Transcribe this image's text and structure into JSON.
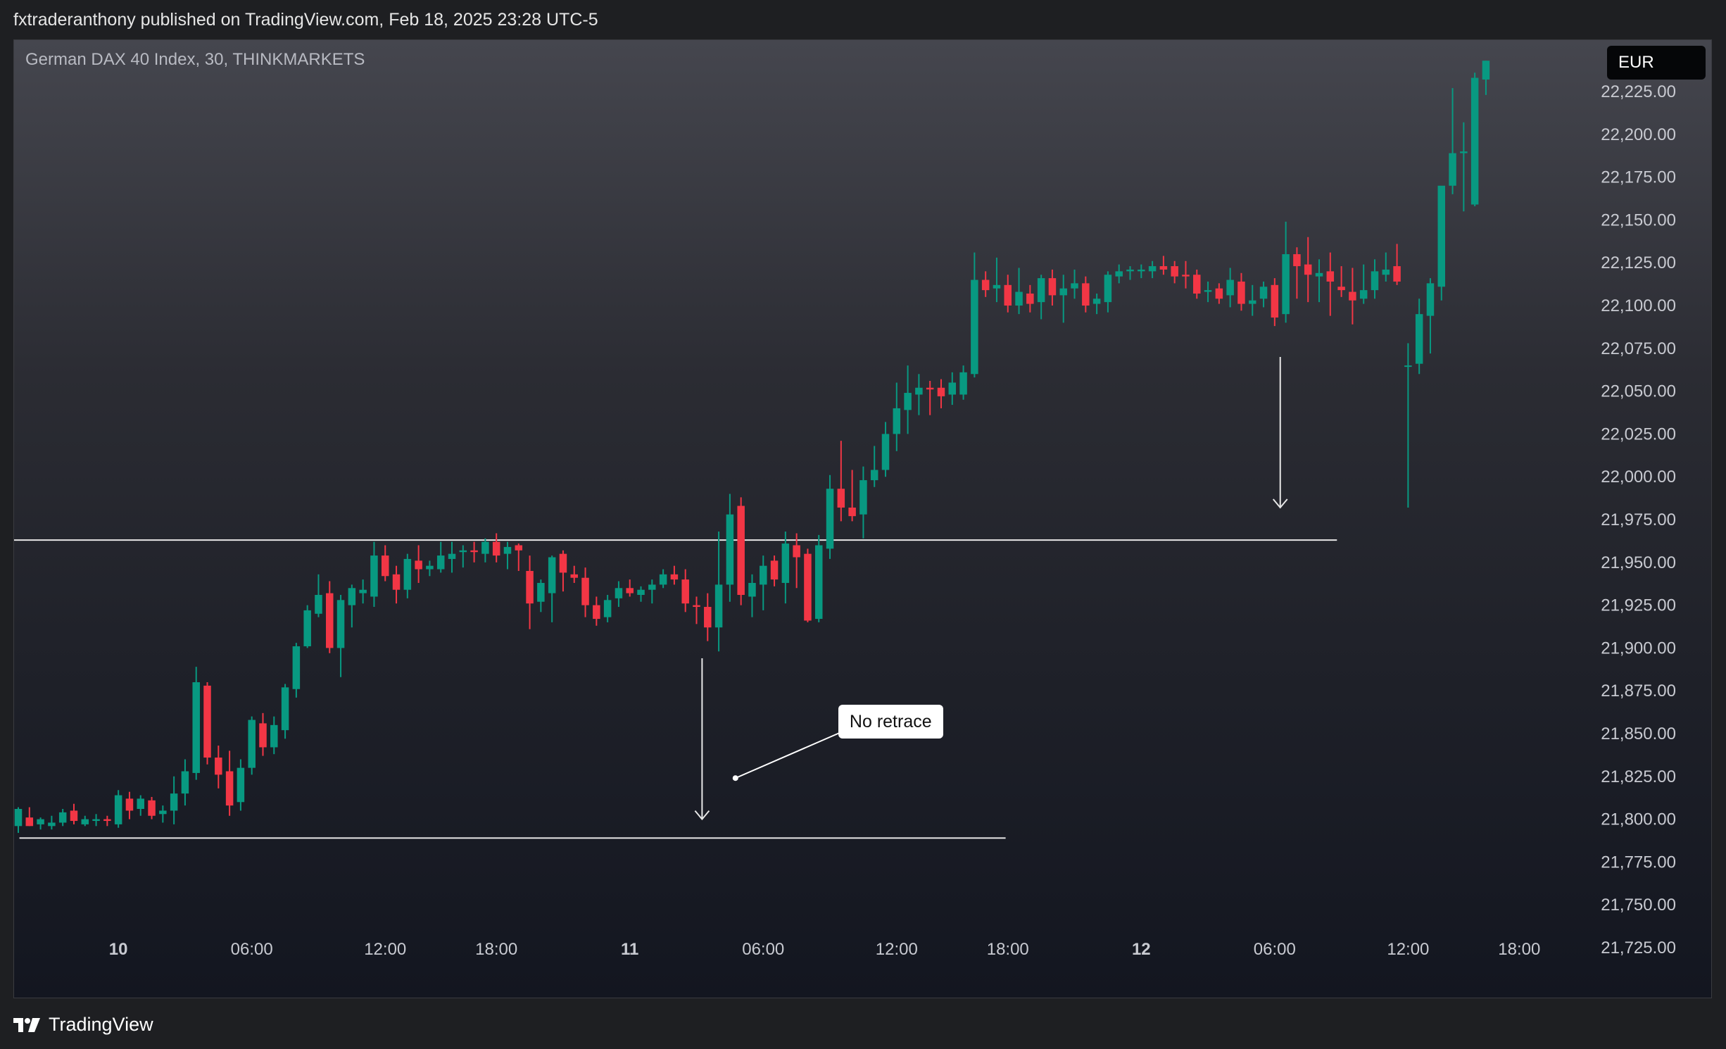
{
  "header": {
    "published_text": "fxtraderanthony published on TradingView.com, Feb 18, 2025 23:28 UTC-5"
  },
  "chart": {
    "symbol_title": "German DAX 40 Index, 30, THINKMARKETS",
    "currency": "EUR",
    "annotation": "No retrace"
  },
  "footer": {
    "brand": "TradingView"
  },
  "colors": {
    "up": "#089981",
    "down": "#f23645",
    "line": "#e8e8e8"
  },
  "chart_data": {
    "type": "candlestick",
    "instrument": "German DAX 40 Index",
    "interval": "30",
    "broker": "THINKMARKETS",
    "ylim": [
      21712,
      22243
    ],
    "y_ticks": [
      21725,
      21750,
      21775,
      21800,
      21825,
      21850,
      21875,
      21900,
      21925,
      21950,
      21975,
      22000,
      22025,
      22050,
      22075,
      22100,
      22125,
      22150,
      22175,
      22200,
      22225
    ],
    "y_tick_labels": [
      "21,725.00",
      "21,750.00",
      "21,775.00",
      "21,800.00",
      "21,825.00",
      "21,850.00",
      "21,875.00",
      "21,900.00",
      "21,925.00",
      "21,950.00",
      "21,975.00",
      "22,000.00",
      "22,025.00",
      "22,050.00",
      "22,075.00",
      "22,100.00",
      "22,125.00",
      "22,150.00",
      "22,175.00",
      "22,200.00",
      "22,225.00"
    ],
    "x_ticks": [
      {
        "label": "10",
        "bar": 9,
        "bold": true
      },
      {
        "label": "06:00",
        "bar": 21
      },
      {
        "label": "12:00",
        "bar": 33
      },
      {
        "label": "18:00",
        "bar": 43
      },
      {
        "label": "11",
        "bar": 55,
        "bold": true
      },
      {
        "label": "06:00",
        "bar": 67
      },
      {
        "label": "12:00",
        "bar": 79
      },
      {
        "label": "18:00",
        "bar": 89
      },
      {
        "label": "12",
        "bar": 101,
        "bold": true
      },
      {
        "label": "06:00",
        "bar": 113
      },
      {
        "label": "12:00",
        "bar": 125
      },
      {
        "label": "18:00",
        "bar": 135
      }
    ],
    "horizontal_lines": [
      {
        "price": 21963,
        "from_bar": -1.2,
        "to_bar": 118.6
      },
      {
        "price": 21789,
        "from_bar": 0.1,
        "to_bar": 88.8
      }
    ],
    "arrows": [
      {
        "bar": 61.5,
        "from_price": 21894,
        "to_price": 21800
      },
      {
        "bar": 113.5,
        "from_price": 22070,
        "to_price": 21982
      }
    ],
    "callout": {
      "text": "No retrace",
      "point_bar": 64.5,
      "point_price": 21824,
      "box_bar": 73.5,
      "box_price": 21848
    },
    "candles": [
      [
        21796,
        21807,
        21792,
        21806
      ],
      [
        21801,
        21807,
        21796,
        21796
      ],
      [
        21797,
        21801,
        21794,
        21800
      ],
      [
        21796,
        21802,
        21794,
        21798
      ],
      [
        21798,
        21806,
        21796,
        21804
      ],
      [
        21805,
        21809,
        21797,
        21799
      ],
      [
        21797,
        21802,
        21796,
        21800
      ],
      [
        21799,
        21803,
        21796,
        21800
      ],
      [
        21800,
        21802,
        21796,
        21799
      ],
      [
        21797,
        21817,
        21795,
        21814
      ],
      [
        21812,
        21816,
        21800,
        21805
      ],
      [
        21806,
        21814,
        21802,
        21812
      ],
      [
        21811,
        21813,
        21800,
        21802
      ],
      [
        21803,
        21808,
        21798,
        21805
      ],
      [
        21805,
        21825,
        21797,
        21815
      ],
      [
        21815,
        21835,
        21808,
        21828
      ],
      [
        21827,
        21889,
        21823,
        21880
      ],
      [
        21878,
        21880,
        21832,
        21836
      ],
      [
        21836,
        21843,
        21818,
        21826
      ],
      [
        21828,
        21840,
        21802,
        21808
      ],
      [
        21810,
        21835,
        21805,
        21830
      ],
      [
        21830,
        21860,
        21826,
        21858
      ],
      [
        21856,
        21862,
        21837,
        21842
      ],
      [
        21842,
        21860,
        21838,
        21855
      ],
      [
        21852,
        21879,
        21847,
        21877
      ],
      [
        21876,
        21903,
        21871,
        21901
      ],
      [
        21901,
        21925,
        21900,
        21922
      ],
      [
        21920,
        21943,
        21918,
        21931
      ],
      [
        21932,
        21939,
        21897,
        21900
      ],
      [
        21900,
        21931,
        21883,
        21928
      ],
      [
        21925,
        21937,
        21912,
        21935
      ],
      [
        21932,
        21940,
        21926,
        21934
      ],
      [
        21930,
        21962,
        21924,
        21954
      ],
      [
        21954,
        21960,
        21939,
        21942
      ],
      [
        21943,
        21948,
        21926,
        21934
      ],
      [
        21934,
        21955,
        21929,
        21952
      ],
      [
        21951,
        21960,
        21938,
        21946
      ],
      [
        21946,
        21951,
        21942,
        21948
      ],
      [
        21946,
        21962,
        21944,
        21954
      ],
      [
        21952,
        21962,
        21944,
        21955
      ],
      [
        21956,
        21960,
        21947,
        21957
      ],
      [
        21957,
        21962,
        21950,
        21956
      ],
      [
        21955,
        21964,
        21950,
        21962
      ],
      [
        21962,
        21967,
        21950,
        21954
      ],
      [
        21955,
        21962,
        21946,
        21959
      ],
      [
        21960,
        21961,
        21945,
        21957
      ],
      [
        21945,
        21954,
        21911,
        21926
      ],
      [
        21927,
        21940,
        21921,
        21938
      ],
      [
        21932,
        21954,
        21915,
        21953
      ],
      [
        21955,
        21957,
        21933,
        21944
      ],
      [
        21943,
        21948,
        21938,
        21941
      ],
      [
        21941,
        21947,
        21918,
        21925
      ],
      [
        21925,
        21930,
        21913,
        21917
      ],
      [
        21918,
        21931,
        21915,
        21928
      ],
      [
        21929,
        21939,
        21924,
        21935
      ],
      [
        21935,
        21940,
        21930,
        21932
      ],
      [
        21931,
        21936,
        21927,
        21934
      ],
      [
        21934,
        21940,
        21926,
        21937
      ],
      [
        21937,
        21946,
        21935,
        21943
      ],
      [
        21943,
        21948,
        21937,
        21940
      ],
      [
        21940,
        21946,
        21921,
        21926
      ],
      [
        21925,
        21930,
        21914,
        21924
      ],
      [
        21924,
        21932,
        21904,
        21912
      ],
      [
        21912,
        21968,
        21898,
        21937
      ],
      [
        21937,
        21990,
        21927,
        21978
      ],
      [
        21983,
        21988,
        21925,
        21931
      ],
      [
        21930,
        21943,
        21918,
        21938
      ],
      [
        21937,
        21954,
        21922,
        21948
      ],
      [
        21951,
        21954,
        21936,
        21940
      ],
      [
        21938,
        21968,
        21926,
        21961
      ],
      [
        21960,
        21967,
        21935,
        21953
      ],
      [
        21955,
        21958,
        21915,
        21916
      ],
      [
        21917,
        21966,
        21915,
        21960
      ],
      [
        21958,
        22001,
        21952,
        21993
      ],
      [
        21993,
        22021,
        21974,
        21982
      ],
      [
        21982,
        22004,
        21974,
        21977
      ],
      [
        21978,
        22006,
        21964,
        21998
      ],
      [
        21998,
        22018,
        21994,
        22004
      ],
      [
        22004,
        22032,
        22000,
        22025
      ],
      [
        22025,
        22055,
        22015,
        22040
      ],
      [
        22039,
        22065,
        22025,
        22049
      ],
      [
        22048,
        22060,
        22036,
        22052
      ],
      [
        22052,
        22056,
        22036,
        22051
      ],
      [
        22052,
        22057,
        22040,
        22047
      ],
      [
        22048,
        22061,
        22042,
        22055
      ],
      [
        22048,
        22065,
        22045,
        22061
      ],
      [
        22060,
        22131,
        22058,
        22115
      ],
      [
        22115,
        22120,
        22105,
        22109
      ],
      [
        22110,
        22128,
        22102,
        22112
      ],
      [
        22112,
        22118,
        22096,
        22100
      ],
      [
        22100,
        22122,
        22095,
        22108
      ],
      [
        22107,
        22112,
        22096,
        22101
      ],
      [
        22102,
        22118,
        22092,
        22116
      ],
      [
        22116,
        22121,
        22100,
        22106
      ],
      [
        22106,
        22118,
        22090,
        22110
      ],
      [
        22110,
        22121,
        22104,
        22113
      ],
      [
        22113,
        22117,
        22096,
        22100
      ],
      [
        22101,
        22107,
        22095,
        22104
      ],
      [
        22102,
        22120,
        22096,
        22118
      ],
      [
        22117,
        22124,
        22113,
        22120
      ],
      [
        22120,
        22123,
        22115,
        22121
      ],
      [
        22120,
        22124,
        22116,
        22121
      ],
      [
        22120,
        22126,
        22116,
        22123
      ],
      [
        22123,
        22129,
        22118,
        22121
      ],
      [
        22123,
        22126,
        22113,
        22117
      ],
      [
        22118,
        22126,
        22110,
        22117
      ],
      [
        22118,
        22121,
        22104,
        22107
      ],
      [
        22108,
        22114,
        22102,
        22109
      ],
      [
        22110,
        22113,
        22101,
        22104
      ],
      [
        22106,
        22122,
        22099,
        22115
      ],
      [
        22114,
        22119,
        22097,
        22101
      ],
      [
        22101,
        22112,
        22094,
        22103
      ],
      [
        22104,
        22114,
        22099,
        22111
      ],
      [
        22112,
        22116,
        22088,
        22093
      ],
      [
        22095,
        22149,
        22090,
        22130
      ],
      [
        22130,
        22134,
        22104,
        22123
      ],
      [
        22124,
        22140,
        22102,
        22118
      ],
      [
        22117,
        22127,
        22102,
        22119
      ],
      [
        22120,
        22131,
        22094,
        22114
      ],
      [
        22111,
        22123,
        22105,
        22109
      ],
      [
        22108,
        22122,
        22089,
        22103
      ],
      [
        22104,
        22124,
        22101,
        22109
      ],
      [
        22109,
        22127,
        22104,
        22120
      ],
      [
        22118,
        22131,
        22114,
        22121
      ],
      [
        22123,
        22136,
        22112,
        22114
      ],
      [
        22065,
        22078,
        21982,
        22065
      ],
      [
        22066,
        22104,
        22060,
        22095
      ],
      [
        22094,
        22116,
        22072,
        22113
      ],
      [
        22111,
        22169,
        22103,
        22170
      ],
      [
        22170,
        22227,
        22165,
        22189
      ],
      [
        22189,
        22207,
        22155,
        22190
      ],
      [
        22159,
        22236,
        22158,
        22233
      ],
      [
        22232,
        22243,
        22223,
        22243
      ]
    ]
  }
}
